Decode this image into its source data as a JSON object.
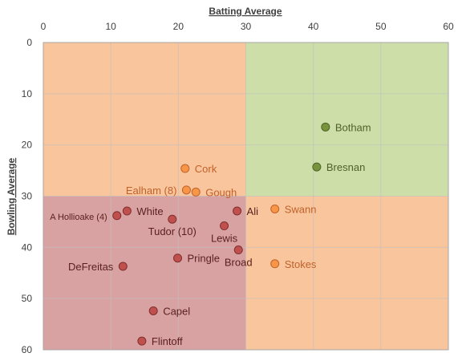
{
  "chart_data": {
    "type": "scatter",
    "xlabel": "Batting Average",
    "ylabel": "Bowling Average",
    "xlim": [
      0,
      60
    ],
    "ylim": [
      0,
      60
    ],
    "x_ticks": [
      0,
      10,
      20,
      30,
      40,
      50,
      60
    ],
    "y_ticks": [
      0,
      10,
      20,
      30,
      40,
      50,
      60
    ],
    "y_inverted": true,
    "grid": true,
    "quadrant_split": {
      "x": 30,
      "y": 30
    },
    "quadrant_colors": {
      "top_left": "#f9c59c",
      "top_right": "#cddea9",
      "bottom_left": "#d9a2a2",
      "bottom_right": "#f9c59c"
    },
    "groups": [
      {
        "color": "#77933c",
        "edge": "#4f6228",
        "label_color": "#4f6228"
      },
      {
        "color": "#f79646",
        "edge": "#c0622c",
        "label_color": "#c0622c"
      },
      {
        "color": "#c0504d",
        "edge": "#7f2f2d",
        "label_color": "#5a1f1f"
      }
    ],
    "points": [
      {
        "name": "Botham",
        "x": 41.8,
        "y": 16.5,
        "group": 0,
        "label_pos": "right"
      },
      {
        "name": "Bresnan",
        "x": 40.5,
        "y": 24.3,
        "group": 0,
        "label_pos": "right"
      },
      {
        "name": "Cork",
        "x": 21.0,
        "y": 24.6,
        "group": 1,
        "label_pos": "right"
      },
      {
        "name": "Ealham (8)",
        "x": 21.2,
        "y": 28.8,
        "group": 1,
        "label_pos": "left"
      },
      {
        "name": "Gough",
        "x": 22.6,
        "y": 29.2,
        "group": 1,
        "label_pos": "right"
      },
      {
        "name": "Swann",
        "x": 34.3,
        "y": 32.5,
        "group": 1,
        "label_pos": "right"
      },
      {
        "name": "Stokes",
        "x": 34.3,
        "y": 43.2,
        "group": 1,
        "label_pos": "right"
      },
      {
        "name": "A Hollioake (4)",
        "x": 10.9,
        "y": 33.8,
        "group": 2,
        "label_pos": "left"
      },
      {
        "name": "White",
        "x": 12.4,
        "y": 32.9,
        "group": 2,
        "label_pos": "right"
      },
      {
        "name": "Tudor (10)",
        "x": 19.1,
        "y": 34.5,
        "group": 2,
        "label_pos": "below"
      },
      {
        "name": "Lewis",
        "x": 26.8,
        "y": 35.8,
        "group": 2,
        "label_pos": "below"
      },
      {
        "name": "Ali",
        "x": 28.7,
        "y": 32.9,
        "group": 2,
        "label_pos": "right"
      },
      {
        "name": "Pringle",
        "x": 19.9,
        "y": 42.1,
        "group": 2,
        "label_pos": "right"
      },
      {
        "name": "Broad",
        "x": 28.9,
        "y": 40.5,
        "group": 2,
        "label_pos": "below"
      },
      {
        "name": "DeFreitas",
        "x": 11.8,
        "y": 43.7,
        "group": 2,
        "label_pos": "left"
      },
      {
        "name": "Capel",
        "x": 16.3,
        "y": 52.4,
        "group": 2,
        "label_pos": "right"
      },
      {
        "name": "Flintoff",
        "x": 14.6,
        "y": 58.3,
        "group": 2,
        "label_pos": "right"
      }
    ]
  }
}
